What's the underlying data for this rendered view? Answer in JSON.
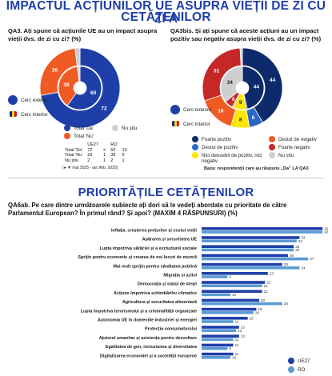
{
  "top_title_line1": "IMPACTUL ACȚIUNILOR UE ASUPRA VIEȚII DE ZI CU ZI A",
  "top_title_line2": "CETĂȚENILOR",
  "q3": {
    "question": "QA3. Ați spune că acțiunile UE au un impact asupra vieții dvs. de zi cu zi? (%)",
    "outer_values": [
      72,
      26,
      2
    ],
    "inner_values": [
      60,
      38,
      2
    ],
    "outer_ring_label": "Cerc exterior",
    "inner_ring_label": "Cerc interior",
    "legend": [
      "Total 'Da'",
      "Total 'Nu'",
      "Nu știu"
    ],
    "colors": [
      "#1f3fa8",
      "#f05a23",
      "#cfcfcf"
    ],
    "table": {
      "headers": [
        "",
        "UE27",
        "",
        "RO",
        ""
      ],
      "rows": [
        [
          "Total 'Da'",
          "72",
          "=",
          "60",
          "10"
        ],
        [
          "Total 'Nu'",
          "26",
          "1",
          "38",
          "9"
        ],
        [
          "Nu știu",
          "2",
          "1",
          "2",
          "1"
        ]
      ],
      "footnote": "(● ▼ mai 2025 - ian./feb. 2025)"
    }
  },
  "q3bis": {
    "question": "QA3bis. Și ați spune că aceste acțiuni au un impact pozitiv sau negativ asupra vieții dvs. de zi cu zi? (%)",
    "outer_values": [
      44,
      6,
      8,
      16,
      31,
      1
    ],
    "inner_values": [
      44,
      1,
      9,
      1,
      6,
      34
    ],
    "outer_ring_label": "Cerc exterior",
    "inner_ring_label": "Cerc interior",
    "legend": [
      "Foarte pozitiv",
      "Destul de pozitiv",
      "Nici deosebit de pozitiv, nici negativ",
      "Destul de negativ",
      "Foarte negativ",
      "Nu știu"
    ],
    "colors": [
      "#0d2a6b",
      "#2b66c7",
      "#ffe600",
      "#f05a23",
      "#c62828",
      "#cfcfcf"
    ],
    "base": "Baza: respondenții care au răspuns „Da” LA QA3"
  },
  "section_title": "PRIORITĂȚILE CETĂȚENILOR",
  "qa6": {
    "question_line1": "QA6ab. Pe care dintre următoarele subiecte ați dori să le vedeți abordate cu prioritate de către",
    "question_line2": "Parlamentul European? În primul rând? Și apoi? (MAXIM 4 RĂSPUNSURI) (%)",
    "legend": [
      "UE27",
      "RO"
    ]
  },
  "chart_data": {
    "type": "bar",
    "orientation": "horizontal",
    "categories": [
      "Inflația, creșterea prețurilor și costul vieții",
      "Apărarea și securitatea UE",
      "Lupta împotriva sărăciei și a excluziunii sociale",
      "Sprijin pentru economie și crearea de noi locuri de muncă",
      "Mai mult sprijin pentru sănătatea publică",
      "Migrația și azilul",
      "Democrația și statul de drept",
      "Acțiune împotriva schimbărilor climatice",
      "Agricultura și securitatea alimentară",
      "Lupta împotriva terorismului și a criminalității organizate",
      "Autonomia UE în domeniile industriei și energiei",
      "Protecția consumatorului",
      "Ajutorul umanitar și asistența pentru dezvoltare",
      "Egalitatea de gen, incluziunea și diversitatea",
      "Digitalizarea economiei și a societății europene"
    ],
    "series": [
      {
        "name": "UE27",
        "values": [
          42,
          34,
          32,
          30,
          28,
          23,
          22,
          21,
          20,
          19,
          16,
          13,
          13,
          11,
          11
        ],
        "color": "#1f3fa8"
      },
      {
        "name": "RO",
        "values": [
          42,
          33,
          32,
          37,
          34,
          9,
          21,
          10,
          28,
          18,
          11,
          12,
          11,
          9,
          10
        ],
        "color": "#5b9bd5"
      }
    ]
  }
}
